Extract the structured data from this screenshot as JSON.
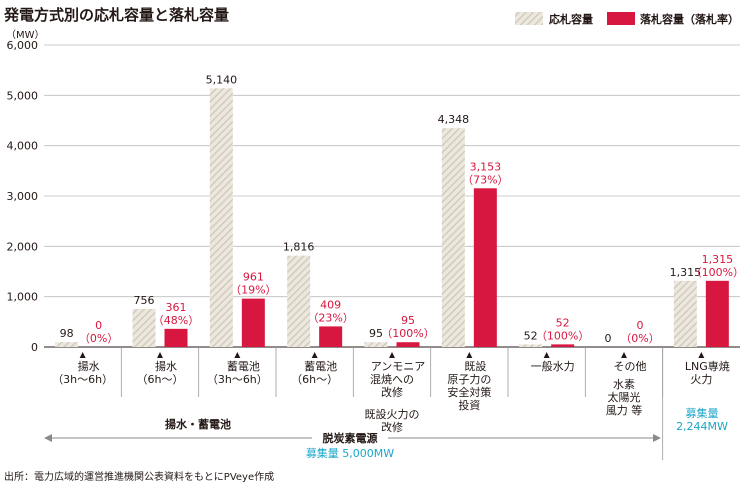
{
  "chart_data": {
    "type": "bar",
    "title": "発電方式別の応札容量と落札容量",
    "unit_label": "（MW）",
    "ylim": [
      0,
      6000
    ],
    "yticks": [
      "0",
      "1,000",
      "2,000",
      "3,000",
      "4,000",
      "5,000",
      "6,000"
    ],
    "legend": {
      "position": "top-right",
      "items": [
        "応札容量",
        "落札容量（落札率）"
      ]
    },
    "colors": {
      "bid": "#d9d3c7",
      "award": "#d7173f",
      "award_label": "#d7173f",
      "cyan": "#1aa6c9"
    },
    "series": [
      {
        "name": "応札容量",
        "values": [
          98,
          756,
          5140,
          1816,
          95,
          4348,
          52,
          0,
          1315
        ]
      },
      {
        "name": "落札容量（落札率）",
        "values": [
          0,
          361,
          961,
          409,
          95,
          3153,
          52,
          0,
          1315
        ]
      }
    ],
    "bid_labels": [
      "98",
      "756",
      "5,140",
      "1,816",
      "95",
      "4,348",
      "52",
      "0",
      "1,315"
    ],
    "award_labels": [
      "0",
      "361",
      "961",
      "409",
      "95",
      "3,153",
      "52",
      "0",
      "1,315"
    ],
    "rate_labels": [
      "（0%）",
      "（48%）",
      "（19%）",
      "（23%）",
      "（100%）",
      "（73%）",
      "（100%）",
      "（0%）",
      "（100%）"
    ],
    "categories": [
      [
        "揚水",
        "（3h〜6h）"
      ],
      [
        "揚水",
        "（6h〜）"
      ],
      [
        "蓄電池",
        "（3h〜6h）"
      ],
      [
        "蓄電池",
        "（6h〜）"
      ],
      [
        "アンモニア",
        "混焼への",
        "改修"
      ],
      [
        "既設",
        "原子力の",
        "安全対策",
        "投資"
      ],
      [
        "一般水力"
      ],
      [
        "その他"
      ],
      [
        "LNG専焼",
        "火力"
      ]
    ],
    "category_notes": {
      "ammonia": [
        "既設火力の",
        "改修"
      ],
      "other": [
        "水素",
        "太陽光",
        "風力 等"
      ]
    },
    "groups": {
      "pumped_storage_battery": "揚水・蓄電池",
      "decarbonized": "脱炭素電源",
      "decarbonized_quota": "募集量 5,000MW",
      "lng_quota_label": "募集量",
      "lng_quota_value": "2,244MW"
    },
    "source": "出所：電力広域的運営推進機関公表資料をもとにPVeye作成"
  }
}
